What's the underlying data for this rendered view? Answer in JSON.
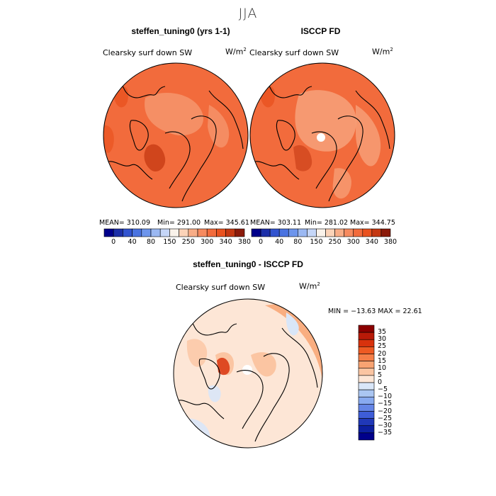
{
  "figure": {
    "title": "JJA"
  },
  "panels": [
    {
      "title": "steffen_tuning0 (yrs 1-1)",
      "variable": "Clearsky surf down SW",
      "units_base": "W/m",
      "units_exp": "2",
      "stats": {
        "mean": "MEAN= 310.09",
        "min": "Min= 291.00",
        "max": "Max= 345.61"
      }
    },
    {
      "title": "ISCCP FD",
      "variable": "Clearsky surf down SW",
      "units_base": "W/m",
      "units_exp": "2",
      "stats": {
        "mean": "MEAN= 303.11",
        "min": "Min= 281.02",
        "max": "Max= 344.75"
      }
    },
    {
      "title": "steffen_tuning0 - ISCCP FD",
      "variable": "Clearsky surf down SW",
      "units_base": "W/m",
      "units_exp": "2",
      "stats": {
        "minmax": "MIN = −13.63 MAX =  22.61"
      }
    }
  ],
  "chart_data": [
    {
      "type": "heatmap",
      "projection": "north polar stereographic",
      "title": "steffen_tuning0 (yrs 1-1)",
      "mean": 310.09,
      "min": 291.0,
      "max": 345.61,
      "colorbar": {
        "levels": [
          0,
          40,
          80,
          150,
          250,
          300,
          340,
          380
        ],
        "tick_labels": [
          "0",
          "40",
          "80",
          "150",
          "250",
          "300",
          "340",
          "380"
        ],
        "colors": [
          "#00008b",
          "#1c2fa8",
          "#3254cf",
          "#4a73e0",
          "#6d95ec",
          "#9bb8f2",
          "#c5d6f7",
          "#f9f2ea",
          "#fbd3b8",
          "#f8ad87",
          "#f68a5f",
          "#f26b3c",
          "#e9521f",
          "#c43812",
          "#8b1a0a"
        ]
      }
    },
    {
      "type": "heatmap",
      "projection": "north polar stereographic",
      "title": "ISCCP FD",
      "mean": 303.11,
      "min": 281.02,
      "max": 344.75,
      "colorbar": {
        "levels": [
          0,
          40,
          80,
          150,
          250,
          300,
          340,
          380
        ],
        "tick_labels": [
          "0",
          "40",
          "80",
          "150",
          "250",
          "300",
          "340",
          "380"
        ],
        "colors": [
          "#00008b",
          "#1c2fa8",
          "#3254cf",
          "#4a73e0",
          "#6d95ec",
          "#9bb8f2",
          "#c5d6f7",
          "#f9f2ea",
          "#fbd3b8",
          "#f8ad87",
          "#f68a5f",
          "#f26b3c",
          "#e9521f",
          "#c43812",
          "#8b1a0a"
        ]
      }
    },
    {
      "type": "heatmap",
      "projection": "north polar stereographic",
      "title": "steffen_tuning0 - ISCCP FD",
      "min": -13.63,
      "max": 22.61,
      "colorbar": {
        "levels": [
          35,
          30,
          25,
          20,
          15,
          10,
          5,
          0,
          -5,
          -10,
          -15,
          -20,
          -25,
          -30,
          -35
        ],
        "tick_labels": [
          "35",
          "30",
          "25",
          "20",
          "15",
          "10",
          "5",
          "0",
          "−5",
          "−10",
          "−15",
          "−20",
          "−25",
          "−30",
          "−35"
        ],
        "colors": [
          "#8b0000",
          "#b81a08",
          "#d8320d",
          "#ee5a23",
          "#f57e48",
          "#f8a372",
          "#fbc5a2",
          "#fde6d6",
          "#d9e6f8",
          "#aac6f2",
          "#88aaf0",
          "#6485e6",
          "#3e5dd8",
          "#2038b8",
          "#0c1fa0",
          "#00008b"
        ]
      }
    }
  ]
}
